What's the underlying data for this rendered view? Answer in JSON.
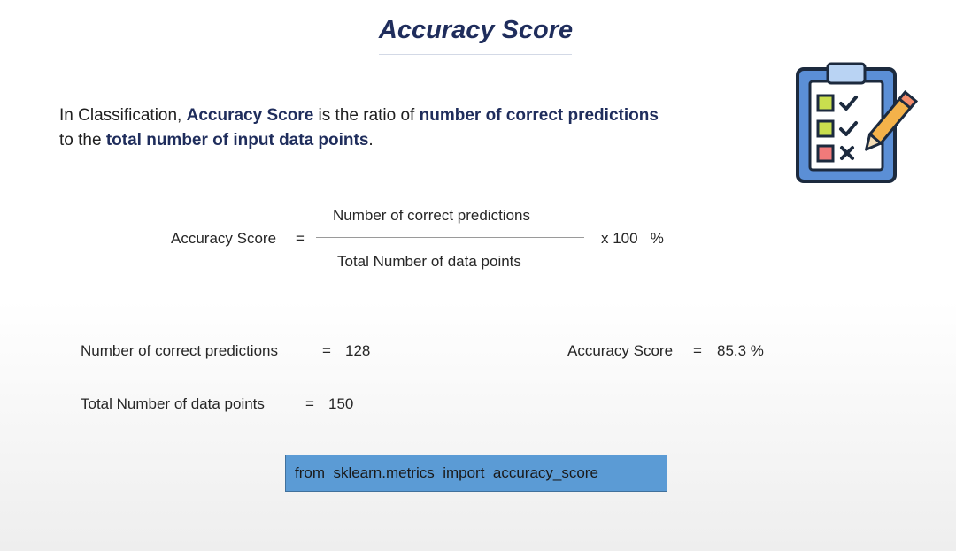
{
  "title": "Accuracy Score",
  "intro": {
    "part1": "In Classification, ",
    "term": "Accuracy Score",
    "part2": " is the ratio of ",
    "numerator_phrase": "number of correct predictions",
    "part3": "to the ",
    "denominator_phrase": "total number of input data points",
    "part4": "."
  },
  "formula": {
    "label": "Accuracy Score",
    "equals": "=",
    "numerator": "Number of correct predictions",
    "denominator": "Total Number of data points",
    "multiplier": "x 100   %"
  },
  "example": {
    "correct_label": "Number of correct predictions",
    "correct_equals": "=",
    "correct_value": "128",
    "total_label": "Total Number of data points",
    "total_equals": "=",
    "total_value": "150",
    "result_label": "Accuracy Score",
    "result_equals": "=",
    "result_value": "85.3 %"
  },
  "code": "from  sklearn.metrics  import  accuracy_score",
  "icon": {
    "name": "clipboard-checklist-icon",
    "colors": {
      "board": "#5b8fd6",
      "board_dark": "#1c2a3e",
      "paper": "#ffffff",
      "clip": "#b9d3f3",
      "box_green": "#c9de4e",
      "box_red": "#f07a7a",
      "pencil": "#f4b24a",
      "pencil_tip": "#f48c6b"
    }
  }
}
